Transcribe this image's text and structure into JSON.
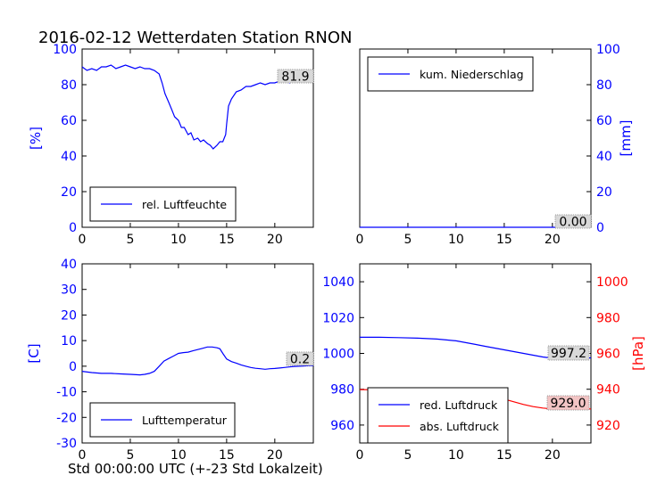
{
  "figure": {
    "title": "2016-02-12 Wetterdaten Station RNON",
    "xlabel": "Std 00:00:00 UTC (+-23 Std Lokalzeit)"
  },
  "colors": {
    "blue": "#0000ff",
    "red": "#ff0000",
    "axis": "#000000",
    "readout_bg": "#d9d9d9",
    "pressure_readout_bg": "#f2c4c4"
  },
  "chart_data": [
    {
      "type": "line",
      "panel": "humidity",
      "xlim": [
        0,
        24
      ],
      "ylim": [
        0,
        100
      ],
      "xticks": [
        0,
        5,
        10,
        15,
        20
      ],
      "yticks": [
        0,
        20,
        40,
        60,
        80,
        100
      ],
      "ylabel": "[%]",
      "legend_position": "lower-left",
      "readout": "81.9",
      "series": [
        {
          "name": "rel. Luftfeuchte",
          "color": "#0000ff",
          "x": [
            0,
            0.5,
            1,
            1.5,
            2,
            2.5,
            3,
            3.5,
            4,
            4.5,
            5,
            5.5,
            6,
            6.5,
            7,
            7.5,
            8,
            8.3,
            8.6,
            9,
            9.3,
            9.6,
            10,
            10.3,
            10.6,
            11,
            11.3,
            11.6,
            12,
            12.3,
            12.6,
            13,
            13.3,
            13.6,
            14,
            14.3,
            14.6,
            14.9,
            15,
            15.2,
            15.5,
            16,
            16.5,
            17,
            17.5,
            18,
            18.5,
            19,
            19.5,
            20,
            20.5,
            21,
            21.5,
            22,
            22.5,
            23,
            23.5,
            24
          ],
          "y": [
            90,
            88,
            89,
            88,
            90,
            90,
            91,
            89,
            90,
            91,
            90,
            89,
            90,
            89,
            89,
            88,
            86,
            81,
            75,
            70,
            66,
            62,
            60,
            56,
            56,
            52,
            53,
            49,
            50,
            48,
            49,
            47,
            46,
            44,
            46,
            48,
            48,
            52,
            58,
            68,
            72,
            76,
            77,
            79,
            79,
            80,
            81,
            80,
            81,
            81,
            82,
            82,
            81,
            82,
            82,
            83,
            82,
            82
          ]
        }
      ]
    },
    {
      "type": "line",
      "panel": "precipitation",
      "xlim": [
        0,
        24
      ],
      "ylim": [
        0,
        100
      ],
      "xticks": [
        0,
        5,
        10,
        15,
        20
      ],
      "yticks": [
        0,
        20,
        40,
        60,
        80,
        100
      ],
      "ylabel": "[mm]",
      "legend_position": "upper-left",
      "readout": "0.00",
      "series": [
        {
          "name": "kum. Niederschlag",
          "color": "#0000ff",
          "x": [
            0,
            24
          ],
          "y": [
            0,
            0
          ]
        }
      ]
    },
    {
      "type": "line",
      "panel": "temperature",
      "xlim": [
        0,
        24
      ],
      "ylim": [
        -30,
        40
      ],
      "xticks": [
        0,
        5,
        10,
        15,
        20
      ],
      "yticks": [
        -30,
        -20,
        -10,
        0,
        10,
        20,
        30,
        40
      ],
      "ylabel": "[C]",
      "legend_position": "lower-left",
      "readout": "0.2",
      "series": [
        {
          "name": "Lufttemperatur",
          "color": "#0000ff",
          "x": [
            0,
            1,
            2,
            3,
            4,
            5,
            6,
            6.5,
            7,
            7.5,
            8,
            8.5,
            9,
            9.5,
            10,
            10.5,
            11,
            11.5,
            12,
            12.5,
            13,
            13.5,
            14,
            14.3,
            14.6,
            15,
            15.5,
            16,
            16.5,
            17,
            17.5,
            18,
            18.5,
            19,
            19.5,
            20,
            20.5,
            21,
            21.5,
            22,
            22.5,
            23,
            23.5,
            24
          ],
          "y": [
            -2,
            -2.5,
            -2.8,
            -2.8,
            -3,
            -3.2,
            -3.4,
            -3.2,
            -2.8,
            -2,
            0,
            2,
            3,
            4,
            5,
            5.3,
            5.5,
            6,
            6.5,
            7,
            7.5,
            7.5,
            7.2,
            6.8,
            5,
            2.8,
            1.8,
            1.2,
            0.5,
            0,
            -0.5,
            -0.8,
            -1,
            -1.2,
            -1,
            -0.9,
            -0.7,
            -0.5,
            -0.3,
            -0.1,
            0,
            0.1,
            0.2,
            0.2
          ]
        }
      ]
    },
    {
      "type": "line",
      "panel": "pressure",
      "xlim": [
        0,
        24
      ],
      "ylim": [
        950,
        1050
      ],
      "ylim_right": [
        910,
        1010
      ],
      "xticks": [
        0,
        5,
        10,
        15,
        20
      ],
      "yticks": [
        960,
        980,
        1000,
        1020,
        1040
      ],
      "yticks_right": [
        920,
        940,
        960,
        980,
        1000
      ],
      "ylabel_right": "[hPa]",
      "legend_position": "lower-left",
      "readouts": [
        "997.2",
        "929.0"
      ],
      "series": [
        {
          "name": "red. Luftdruck",
          "color": "#0000ff",
          "axis": "left",
          "x": [
            0,
            2,
            4,
            6,
            8,
            9,
            10,
            11,
            12,
            13,
            14,
            15,
            16,
            17,
            18,
            19,
            20,
            21,
            22,
            23,
            24
          ],
          "y": [
            1009,
            1009,
            1008.8,
            1008.5,
            1008,
            1007.5,
            1007,
            1006,
            1005,
            1004,
            1003,
            1002,
            1001,
            1000,
            999,
            998,
            997.3,
            997.2,
            997.2,
            997.3,
            997.5
          ]
        },
        {
          "name": "abs. Luftdruck",
          "color": "#ff0000",
          "axis": "right",
          "x": [
            0,
            2,
            4,
            5,
            6,
            7,
            8,
            9,
            10,
            11,
            12,
            13,
            14,
            15,
            16,
            17,
            18,
            19,
            20,
            21,
            22,
            23,
            24
          ],
          "y": [
            939.8,
            939.7,
            939.5,
            939.2,
            939,
            938.8,
            938.5,
            938.8,
            939,
            938.8,
            938,
            937,
            936,
            934.5,
            933,
            931.5,
            930.3,
            929.5,
            929,
            929,
            929,
            929,
            929
          ]
        }
      ]
    }
  ]
}
